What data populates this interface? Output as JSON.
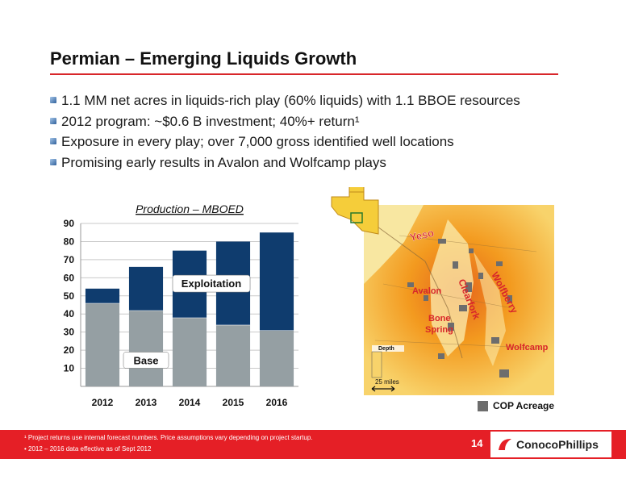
{
  "slide": {
    "title": "Permian – Emerging Liquids Growth",
    "bullets": [
      "1.1 MM net acres in liquids-rich play (60% liquids) with 1.1 BBOE resources",
      "2012 program: ~$0.6 B investment; 40%+ return¹",
      "Exposure in every play; over 7,000 gross identified well locations",
      "Promising early results in Avalon and Wolfcamp plays"
    ],
    "page_number": "14"
  },
  "chart_data": {
    "type": "bar",
    "title": "Production – MBOED",
    "categories": [
      "2012",
      "2013",
      "2014",
      "2015",
      "2016"
    ],
    "series": [
      {
        "name": "Base",
        "values": [
          46,
          42,
          38,
          34,
          31
        ]
      },
      {
        "name": "Exploitation",
        "values": [
          8,
          24,
          37,
          46,
          54
        ]
      }
    ],
    "ylim": [
      0,
      90
    ],
    "yticks": [
      "10",
      "20",
      "30",
      "40",
      "50",
      "60",
      "70",
      "80",
      "90"
    ],
    "stacked": true,
    "grid": true,
    "colors": {
      "Base": "#959fa3",
      "Exploitation": "#0f3c6e"
    }
  },
  "map": {
    "labels": [
      "Yeso",
      "Avalon",
      "Clearfork",
      "Wolfberry",
      "Bone Spring",
      "Wolfcamp"
    ],
    "depth_label": "Depth",
    "scale_label": "25 miles",
    "legend_label": "COP Acreage"
  },
  "footer": {
    "note1": "¹ Project returns use internal forecast numbers. Price assumptions vary depending on project startup.",
    "note2": "• 2012 – 2016 data effective as of Sept 2012",
    "logo_text": "ConocoPhillips"
  },
  "colors": {
    "accent_red": "#e51f26",
    "base": "#959fa3",
    "exploitation": "#0f3c6e",
    "map_orange": "#f39a1f"
  }
}
